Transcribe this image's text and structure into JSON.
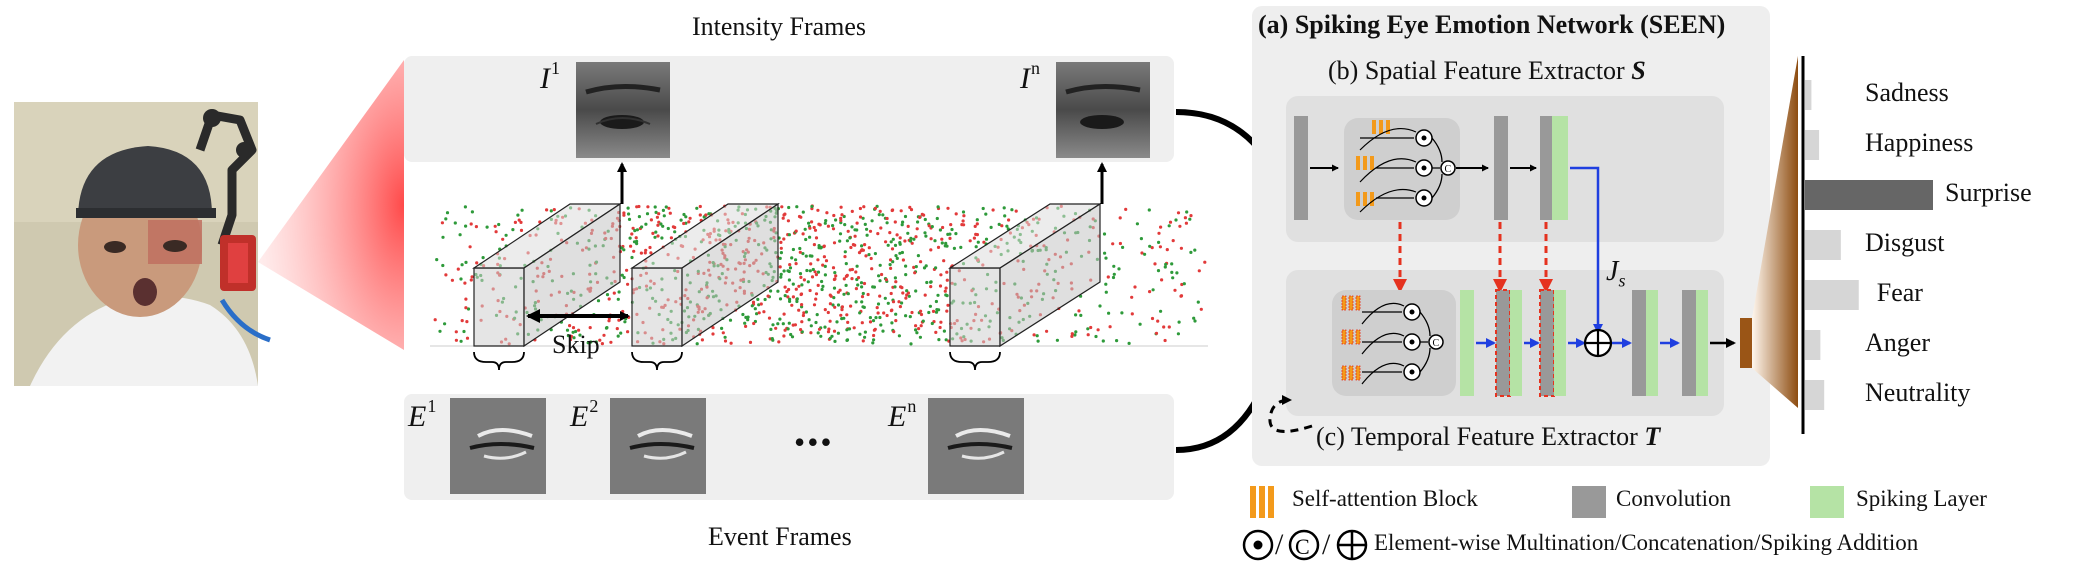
{
  "intensity_title": "Intensity Frames",
  "event_title": "Event Frames",
  "intensity_first": {
    "symbol": "I",
    "sup": "1"
  },
  "intensity_last": {
    "symbol": "I",
    "sup": "n"
  },
  "event_first": {
    "symbol": "E",
    "sup": "1"
  },
  "event_second": {
    "symbol": "E",
    "sup": "2"
  },
  "event_last": {
    "symbol": "E",
    "sup": "n"
  },
  "ellipsis": "•••",
  "skip_label": "Skip",
  "seen_title": "(a) Spiking Eye Emotion Network (SEEN)",
  "spatial_title": "(b) Spatial Feature Extractor",
  "spatial_symbol": "S",
  "temporal_title": "(c) Temporal Feature Extractor",
  "temporal_symbol": "T",
  "js_symbol": "J",
  "js_sub": "s",
  "emotions": [
    {
      "label": "Sadness",
      "value": 0.05
    },
    {
      "label": "Happiness",
      "value": 0.11
    },
    {
      "label": "Surprise",
      "value": 1.0
    },
    {
      "label": "Disgust",
      "value": 0.28
    },
    {
      "label": "Fear",
      "value": 0.42
    },
    {
      "label": "Anger",
      "value": 0.12
    },
    {
      "label": "Neutrality",
      "value": 0.15
    }
  ],
  "legend": {
    "self_attention": "Self-attention Block",
    "convolution": "Convolution",
    "spiking_layer": "Spiking Layer",
    "ops": "Element-wise Multination/Concatenation/Spiking Addition",
    "slash": "/"
  },
  "colors": {
    "orange": "#f39a1b",
    "conv_gray": "#999999",
    "spike_green": "#b5e3a5",
    "blue_arrow": "#1f3fe0",
    "red_dash": "#e5321f",
    "panel_gray": "#eeeeee",
    "inner_gray": "#e2e2e2",
    "bar_dark": "#666666",
    "bar_light": "#d6d6d6",
    "brown": "#9a5516"
  }
}
